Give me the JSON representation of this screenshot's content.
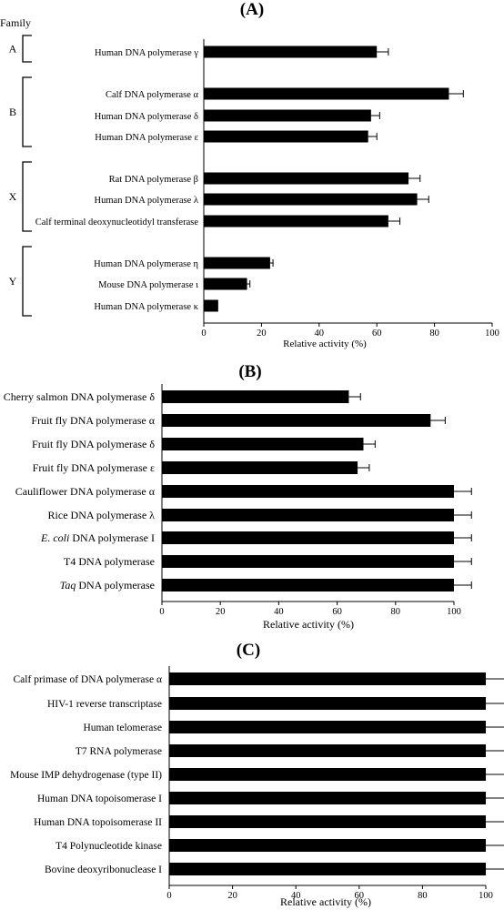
{
  "chart_data": [
    {
      "type": "bar",
      "orientation": "horizontal",
      "panel_label": "(A)",
      "family_header": "Family",
      "families": [
        {
          "name": "A",
          "members": 1
        },
        {
          "name": "B",
          "members": 3
        },
        {
          "name": "X",
          "members": 3
        },
        {
          "name": "Y",
          "members": 3
        }
      ],
      "categories": [
        "Human DNA polymerase γ",
        "Calf DNA polymerase α",
        "Human DNA polymerase δ",
        "Human DNA polymerase ε",
        "Rat DNA polymerase β",
        "Human DNA polymerase λ",
        "Calf terminal deoxynucleotidyl transferase",
        "Human DNA polymerase η",
        "Mouse DNA polymerase ι",
        "Human DNA polymerase κ"
      ],
      "values": [
        60,
        85,
        58,
        57,
        71,
        74,
        64,
        23,
        15,
        5
      ],
      "errors": [
        4,
        5,
        3,
        3,
        4,
        4,
        4,
        1,
        1,
        0
      ],
      "xlabel": "Relative activity (%)",
      "xlim": [
        0,
        100
      ],
      "ticks": [
        "0",
        "20",
        "40",
        "60",
        "80",
        "100"
      ],
      "grid": false,
      "bar_color": "#000000"
    },
    {
      "type": "bar",
      "orientation": "horizontal",
      "panel_label": "(B)",
      "categories": [
        "Cherry salmon DNA polymerase δ",
        "Fruit fly DNA polymerase α",
        "Fruit fly DNA polymerase δ",
        "Fruit fly DNA polymerase ε",
        "Cauliflower DNA polymerase α",
        "Rice DNA polymerase λ",
        "E. coli DNA polymerase I",
        "T4 DNA polymerase",
        "Taq DNA polymerase"
      ],
      "values": [
        64,
        92,
        69,
        67,
        100,
        100,
        100,
        100,
        100
      ],
      "errors": [
        4,
        5,
        4,
        4,
        6,
        6,
        6,
        6,
        6
      ],
      "xlabel": "Relative activity (%)",
      "xlim": [
        0,
        100
      ],
      "ticks": [
        "0",
        "20",
        "40",
        "60",
        "80",
        "100"
      ],
      "grid": false,
      "bar_color": "#000000"
    },
    {
      "type": "bar",
      "orientation": "horizontal",
      "panel_label": "(C)",
      "categories": [
        "Calf primase of DNA polymerase α",
        "HIV-1 reverse transcriptase",
        "Human telomerase",
        "T7 RNA polymerase",
        "Mouse IMP dehydrogenase (type II)",
        "Human DNA topoisomerase I",
        "Human DNA topoisomerase II",
        "T4 Polynucleotide kinase",
        "Bovine deoxyribonuclease I"
      ],
      "values": [
        100,
        100,
        100,
        100,
        100,
        100,
        100,
        100,
        100
      ],
      "errors": [
        6,
        6,
        6,
        6,
        6,
        6,
        6,
        6,
        6
      ],
      "xlabel": "Relative activity (%)",
      "xlim": [
        0,
        100
      ],
      "ticks": [
        "0",
        "20",
        "40",
        "60",
        "80",
        "100"
      ],
      "grid": false,
      "bar_color": "#000000"
    }
  ]
}
